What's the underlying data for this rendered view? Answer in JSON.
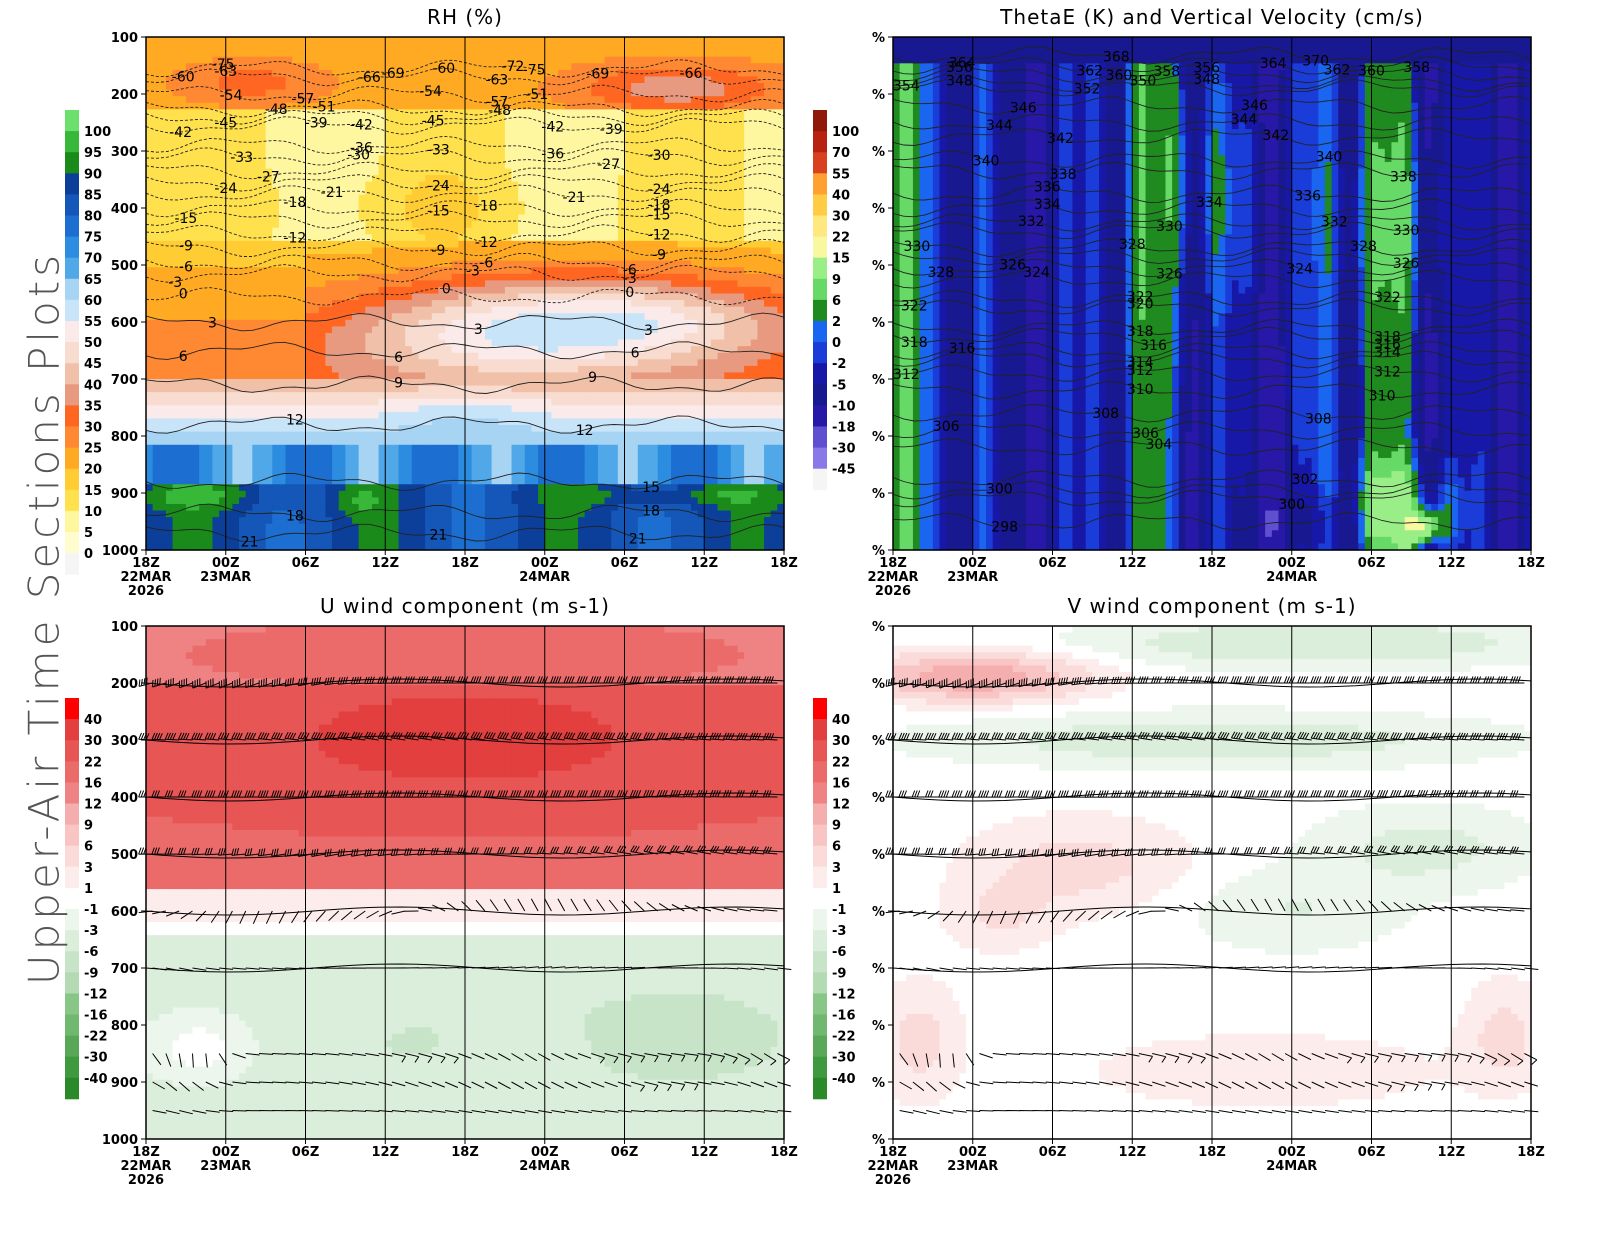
{
  "page": {
    "side_title": "Upper-Air Time Sections Plots"
  },
  "palettes": {
    "rh": [
      "#f5f5f5",
      "#fffdd0",
      "#fff7a0",
      "#ffee66",
      "#ffe14d",
      "#ffcc33",
      "#ffaa22",
      "#ff8833",
      "#ff6622",
      "#f07050",
      "#e89a80",
      "#f0c0a8",
      "#f8dcd0",
      "#fbeaea",
      "#c8e4f8",
      "#a8d4f4",
      "#80c0ef",
      "#50a8e8",
      "#2c8ce0",
      "#1c6ed0",
      "#1457b8",
      "#0c3f9a",
      "#08306b",
      "#1a8a1a",
      "#38b838",
      "#6ce06c"
    ],
    "thetae": [
      "#f5f5f5",
      "#8878e8",
      "#6050d0",
      "#4030b8",
      "#2818a8",
      "#181890",
      "#1818a8",
      "#1a3cd8",
      "#1a66f0",
      "#1f8a1f",
      "#33b833",
      "#66d966",
      "#99ee88",
      "#f8f8a0",
      "#ffe880",
      "#ffcc44",
      "#ffa030",
      "#f07020",
      "#d84020",
      "#b82010",
      "#901808"
    ],
    "wind": [
      "#2a8a2a",
      "#3f9a3f",
      "#58a858",
      "#70b870",
      "#88c688",
      "#9fd09f",
      "#b4dab4",
      "#c8e4c8",
      "#dbeedb",
      "#ecf6ec",
      "#ffffff",
      "#fdecec",
      "#fbdada",
      "#f8c4c4",
      "#f5aeae",
      "#f29898",
      "#ef8282",
      "#eb6b6b",
      "#e75555",
      "#e33f3f",
      "#ff0000"
    ]
  },
  "panels": [
    {
      "id": "rh",
      "title": "RH (%)",
      "yaxis_mode": "pressure",
      "legend_side": "left",
      "colorbar": {
        "labels": [
          "100",
          "95",
          "90",
          "85",
          "80",
          "75",
          "70",
          "65",
          "60",
          "55",
          "50",
          "45",
          "40",
          "35",
          "30",
          "25",
          "20",
          "15",
          "10",
          "5",
          "0"
        ],
        "palette": "rh"
      }
    },
    {
      "id": "thetae",
      "title": "ThetaE (K) and Vertical Velocity (cm/s)",
      "yaxis_mode": "percent",
      "legend_side": "left",
      "colorbar": {
        "labels": [
          "100",
          "70",
          "55",
          "40",
          "30",
          "22",
          "15",
          "9",
          "6",
          "2",
          "0",
          "-2",
          "-5",
          "-10",
          "-18",
          "-30",
          "-45"
        ],
        "palette": "thetae"
      }
    },
    {
      "id": "u",
      "title": "U wind component (m s-1)",
      "yaxis_mode": "pressure",
      "legend_side": "left",
      "colorbar": {
        "labels": [
          "40",
          "30",
          "22",
          "16",
          "12",
          "9",
          "6",
          "3",
          "1",
          "-1",
          "-3",
          "-6",
          "-9",
          "-12",
          "-16",
          "-22",
          "-30",
          "-40"
        ],
        "palette": "wind"
      }
    },
    {
      "id": "v",
      "title": "V wind component (m s-1)",
      "yaxis_mode": "percent",
      "legend_side": "left",
      "colorbar": {
        "labels": [
          "40",
          "30",
          "22",
          "16",
          "12",
          "9",
          "6",
          "3",
          "1",
          "-1",
          "-3",
          "-6",
          "-9",
          "-12",
          "-16",
          "-22",
          "-30",
          "-40"
        ],
        "palette": "wind"
      }
    }
  ],
  "chart_data": {
    "type": "heatmap",
    "x_ticks": [
      {
        "label": "18Z",
        "sub": [
          "22MAR",
          "2026"
        ]
      },
      {
        "label": "00Z",
        "sub": [
          "23MAR"
        ]
      },
      {
        "label": "06Z",
        "sub": []
      },
      {
        "label": "12Z",
        "sub": []
      },
      {
        "label": "18Z",
        "sub": []
      },
      {
        "label": "00Z",
        "sub": [
          "24MAR"
        ]
      },
      {
        "label": "06Z",
        "sub": []
      },
      {
        "label": "12Z",
        "sub": []
      },
      {
        "label": "18Z",
        "sub": []
      }
    ],
    "pressure_levels": [
      100,
      200,
      300,
      400,
      500,
      600,
      700,
      800,
      900,
      1000
    ],
    "pressure_labels": [
      "100",
      "200",
      "300",
      "400",
      "500",
      "600",
      "700",
      "800",
      "900",
      "1000"
    ],
    "percent_label": "%",
    "ylim": [
      100,
      1000
    ],
    "rh_temp_contours": [
      {
        "p": 155,
        "labels": [
          {
            "t": 2.9,
            "v": "-75"
          },
          {
            "t": 14.6,
            "v": "-75"
          },
          {
            "t": 13.8,
            "v": "-72"
          },
          {
            "t": 9.3,
            "v": "-69"
          }
        ]
      },
      {
        "p": 170,
        "labels": [
          {
            "t": 1.4,
            "v": "-60"
          },
          {
            "t": 3.0,
            "v": "-63"
          },
          {
            "t": 8.4,
            "v": "-66"
          },
          {
            "t": 11.2,
            "v": "-60"
          },
          {
            "t": 13.2,
            "v": "-63"
          },
          {
            "t": 17.0,
            "v": "-69"
          },
          {
            "t": 20.5,
            "v": "-66"
          }
        ]
      },
      {
        "p": 200,
        "labels": [
          {
            "t": 3.2,
            "v": "-54"
          },
          {
            "t": 5.9,
            "v": "-57"
          },
          {
            "t": 10.7,
            "v": "-54"
          },
          {
            "t": 13.2,
            "v": "-57"
          },
          {
            "t": 14.7,
            "v": "-51"
          }
        ]
      },
      {
        "p": 225,
        "labels": [
          {
            "t": 4.9,
            "v": "-48"
          },
          {
            "t": 6.7,
            "v": "-51"
          },
          {
            "t": 13.3,
            "v": "-48"
          }
        ]
      },
      {
        "p": 240,
        "labels": [
          {
            "t": 3.0,
            "v": "-45"
          },
          {
            "t": 10.8,
            "v": "-45"
          }
        ]
      },
      {
        "p": 255,
        "labels": [
          {
            "t": 1.3,
            "v": "-42"
          },
          {
            "t": 8.1,
            "v": "-42"
          },
          {
            "t": 15.3,
            "v": "-42"
          },
          {
            "t": 17.5,
            "v": "-39"
          },
          {
            "t": 6.4,
            "v": "-39"
          }
        ]
      },
      {
        "p": 290,
        "labels": [
          {
            "t": 8.1,
            "v": "-36"
          },
          {
            "t": 15.3,
            "v": "-36"
          }
        ]
      },
      {
        "p": 310,
        "labels": [
          {
            "t": 3.6,
            "v": "-33"
          },
          {
            "t": 11.0,
            "v": "-33"
          },
          {
            "t": 19.3,
            "v": "-30"
          },
          {
            "t": 8.0,
            "v": "-30"
          }
        ]
      },
      {
        "p": 335,
        "labels": [
          {
            "t": 4.6,
            "v": "-27"
          },
          {
            "t": 17.4,
            "v": "-27"
          }
        ]
      },
      {
        "p": 355,
        "labels": [
          {
            "t": 3.0,
            "v": "-24"
          },
          {
            "t": 11.0,
            "v": "-24"
          },
          {
            "t": 19.3,
            "v": "-24"
          }
        ]
      },
      {
        "p": 375,
        "labels": [
          {
            "t": 7.0,
            "v": "-21"
          },
          {
            "t": 16.1,
            "v": "-21"
          }
        ]
      },
      {
        "p": 400,
        "labels": [
          {
            "t": 5.6,
            "v": "-18"
          },
          {
            "t": 12.8,
            "v": "-18"
          },
          {
            "t": 19.3,
            "v": "-18"
          }
        ]
      },
      {
        "p": 420,
        "labels": [
          {
            "t": 1.5,
            "v": "-15"
          },
          {
            "t": 11.0,
            "v": "-15"
          },
          {
            "t": 19.3,
            "v": "-15"
          }
        ]
      },
      {
        "p": 445,
        "labels": [
          {
            "t": 5.6,
            "v": "-12"
          },
          {
            "t": 12.8,
            "v": "-12"
          },
          {
            "t": 19.3,
            "v": "-12"
          }
        ]
      },
      {
        "p": 470,
        "labels": [
          {
            "t": 1.5,
            "v": "-9"
          },
          {
            "t": 11.0,
            "v": "-9"
          },
          {
            "t": 19.3,
            "v": "-9"
          }
        ]
      },
      {
        "p": 495,
        "labels": [
          {
            "t": 1.5,
            "v": "-6"
          },
          {
            "t": 12.8,
            "v": "-6"
          },
          {
            "t": 18.2,
            "v": "-6"
          }
        ]
      },
      {
        "p": 515,
        "labels": [
          {
            "t": 1.1,
            "v": "-3"
          },
          {
            "t": 12.3,
            "v": "-3"
          },
          {
            "t": 18.2,
            "v": "-3"
          }
        ]
      },
      {
        "p": 555,
        "labels": [
          {
            "t": 1.4,
            "v": "0"
          },
          {
            "t": 11.3,
            "v": "0"
          },
          {
            "t": 18.2,
            "v": "0"
          }
        ]
      },
      {
        "p": 600,
        "labels": [
          {
            "t": 2.5,
            "v": "3"
          },
          {
            "t": 12.5,
            "v": "3"
          },
          {
            "t": 18.9,
            "v": "3"
          }
        ]
      },
      {
        "p": 650,
        "labels": [
          {
            "t": 1.4,
            "v": "6"
          },
          {
            "t": 9.5,
            "v": "6"
          },
          {
            "t": 18.4,
            "v": "6"
          }
        ]
      },
      {
        "p": 710,
        "labels": [
          {
            "t": 9.5,
            "v": "9"
          },
          {
            "t": 16.8,
            "v": "9"
          }
        ]
      },
      {
        "p": 780,
        "labels": [
          {
            "t": 5.6,
            "v": "12"
          },
          {
            "t": 16.5,
            "v": "12"
          }
        ]
      },
      {
        "p": 880,
        "labels": [
          {
            "t": 19.0,
            "v": "15"
          }
        ]
      },
      {
        "p": 935,
        "labels": [
          {
            "t": 5.6,
            "v": "18"
          },
          {
            "t": 19.0,
            "v": "18"
          }
        ]
      },
      {
        "p": 970,
        "labels": [
          {
            "t": 3.9,
            "v": "21"
          },
          {
            "t": 11.0,
            "v": "21"
          },
          {
            "t": 18.5,
            "v": "21"
          }
        ]
      }
    ],
    "thetae_contours": [
      {
        "p": 132,
        "labels": [
          {
            "t": 8.4,
            "v": "368"
          },
          {
            "t": 15.9,
            "v": "370"
          }
        ]
      },
      {
        "p": 150,
        "labels": [
          {
            "t": 2.6,
            "v": "364"
          },
          {
            "t": 7.4,
            "v": "362"
          },
          {
            "t": 14.3,
            "v": "364"
          },
          {
            "t": 16.7,
            "v": "362"
          }
        ]
      },
      {
        "p": 165,
        "labels": [
          {
            "t": 2.5,
            "v": "356"
          },
          {
            "t": 8.5,
            "v": "360"
          },
          {
            "t": 10.3,
            "v": "358"
          },
          {
            "t": 11.8,
            "v": "356"
          },
          {
            "t": 18.0,
            "v": "360"
          },
          {
            "t": 19.7,
            "v": "358"
          }
        ]
      },
      {
        "p": 180,
        "labels": [
          {
            "t": 0.5,
            "v": "354"
          },
          {
            "t": 7.3,
            "v": "352"
          },
          {
            "t": 9.4,
            "v": "350"
          },
          {
            "t": 11.8,
            "v": "348"
          }
        ]
      },
      {
        "p": 190,
        "labels": [
          {
            "t": 2.5,
            "v": "348"
          }
        ]
      },
      {
        "p": 220,
        "labels": [
          {
            "t": 4.9,
            "v": "346"
          },
          {
            "t": 13.6,
            "v": "346"
          }
        ]
      },
      {
        "p": 250,
        "labels": [
          {
            "t": 4.0,
            "v": "344"
          },
          {
            "t": 13.2,
            "v": "344"
          }
        ]
      },
      {
        "p": 275,
        "labels": [
          {
            "t": 6.3,
            "v": "342"
          },
          {
            "t": 14.4,
            "v": "342"
          }
        ]
      },
      {
        "p": 315,
        "labels": [
          {
            "t": 3.5,
            "v": "340"
          },
          {
            "t": 16.4,
            "v": "340"
          }
        ]
      },
      {
        "p": 335,
        "labels": [
          {
            "t": 6.4,
            "v": "338"
          },
          {
            "t": 19.2,
            "v": "338"
          }
        ]
      },
      {
        "p": 375,
        "labels": [
          {
            "t": 5.8,
            "v": "336"
          },
          {
            "t": 15.6,
            "v": "336"
          }
        ]
      },
      {
        "p": 400,
        "labels": [
          {
            "t": 11.9,
            "v": "334"
          },
          {
            "t": 5.8,
            "v": "334"
          }
        ]
      },
      {
        "p": 425,
        "labels": [
          {
            "t": 5.2,
            "v": "332"
          },
          {
            "t": 16.6,
            "v": "332"
          }
        ]
      },
      {
        "p": 440,
        "labels": [
          {
            "t": 10.4,
            "v": "330"
          },
          {
            "t": 19.3,
            "v": "330"
          }
        ]
      },
      {
        "p": 470,
        "labels": [
          {
            "t": 0.9,
            "v": "330"
          },
          {
            "t": 17.7,
            "v": "328"
          },
          {
            "t": 9.0,
            "v": "328"
          }
        ]
      },
      {
        "p": 485,
        "labels": [
          {
            "t": 19.3,
            "v": "326"
          }
        ]
      },
      {
        "p": 505,
        "labels": [
          {
            "t": 1.8,
            "v": "328"
          },
          {
            "t": 10.4,
            "v": "326"
          },
          {
            "t": 4.5,
            "v": "326"
          },
          {
            "t": 15.3,
            "v": "324"
          }
        ]
      },
      {
        "p": 525,
        "labels": [
          {
            "t": 5.4,
            "v": "324"
          }
        ]
      },
      {
        "p": 560,
        "labels": [
          {
            "t": 9.3,
            "v": "322"
          },
          {
            "t": 18.6,
            "v": "322"
          }
        ]
      },
      {
        "p": 575,
        "labels": [
          {
            "t": 0.8,
            "v": "322"
          },
          {
            "t": 9.3,
            "v": "320"
          }
        ]
      },
      {
        "p": 610,
        "labels": [
          {
            "t": 9.3,
            "v": "318"
          },
          {
            "t": 18.6,
            "v": "318"
          }
        ]
      },
      {
        "p": 625,
        "labels": [
          {
            "t": 0.8,
            "v": "318"
          },
          {
            "t": 9.8,
            "v": "316"
          },
          {
            "t": 18.6,
            "v": "316"
          }
        ]
      },
      {
        "p": 650,
        "labels": [
          {
            "t": 2.6,
            "v": "316"
          },
          {
            "t": 18.6,
            "v": "314"
          }
        ]
      },
      {
        "p": 665,
        "labels": [
          {
            "t": 9.3,
            "v": "314"
          }
        ]
      },
      {
        "p": 690,
        "labels": [
          {
            "t": 0.5,
            "v": "312"
          },
          {
            "t": 9.3,
            "v": "312"
          },
          {
            "t": 18.6,
            "v": "312"
          }
        ]
      },
      {
        "p": 720,
        "labels": [
          {
            "t": 9.3,
            "v": "310"
          },
          {
            "t": 18.4,
            "v": "310"
          }
        ]
      },
      {
        "p": 760,
        "labels": [
          {
            "t": 8.0,
            "v": "308"
          },
          {
            "t": 16.0,
            "v": "308"
          }
        ]
      },
      {
        "p": 790,
        "labels": [
          {
            "t": 2.0,
            "v": "306"
          },
          {
            "t": 9.5,
            "v": "306"
          }
        ]
      },
      {
        "p": 820,
        "labels": [
          {
            "t": 10.0,
            "v": "304"
          }
        ]
      },
      {
        "p": 875,
        "labels": [
          {
            "t": 15.5,
            "v": "302"
          }
        ]
      },
      {
        "p": 895,
        "labels": [
          {
            "t": 4.0,
            "v": "300"
          }
        ]
      },
      {
        "p": 910,
        "labels": [
          {
            "t": 15.0,
            "v": "300"
          }
        ]
      },
      {
        "p": 950,
        "labels": [
          {
            "t": 4.2,
            "v": "298"
          }
        ]
      }
    ],
    "barb_levels": [
      200,
      300,
      400,
      500,
      600,
      700,
      850,
      900,
      950
    ],
    "barb_times_per_level": 48
  }
}
